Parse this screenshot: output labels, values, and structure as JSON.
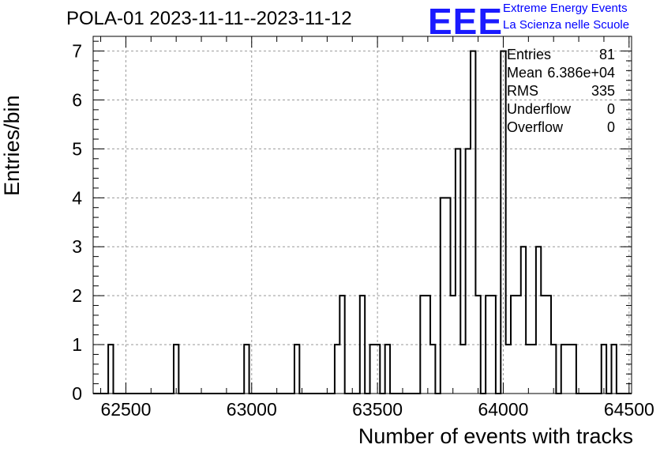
{
  "title": "POLA-01 2023-11-11--2023-11-12",
  "logo": {
    "mark": "EEE",
    "line1": "Extreme Energy Events",
    "line2": "La Scienza nelle Scuole",
    "color": "#0000ff"
  },
  "stats": {
    "entries_label": "Entries",
    "entries_value": "81",
    "mean_label": "Mean",
    "mean_value": "6.386e+04",
    "rms_label": "RMS",
    "rms_value": "335",
    "underflow_label": "Underflow",
    "underflow_value": "0",
    "overflow_label": "Overflow",
    "overflow_value": "0"
  },
  "chart_data": {
    "type": "bar",
    "title": "POLA-01 2023-11-11--2023-11-12",
    "xlabel": "Number of events with tracks",
    "ylabel": "Entries/bin",
    "xlim": [
      62370,
      64510
    ],
    "ylim": [
      0,
      7.3
    ],
    "grid": true,
    "x_ticks": [
      "62500",
      "63000",
      "63500",
      "64000",
      "64500"
    ],
    "y_ticks": [
      "0",
      "1",
      "2",
      "3",
      "4",
      "5",
      "6",
      "7"
    ],
    "bin_width": 20,
    "bins": [
      {
        "x": 62430,
        "y": 1
      },
      {
        "x": 62690,
        "y": 1
      },
      {
        "x": 62970,
        "y": 1
      },
      {
        "x": 63170,
        "y": 1
      },
      {
        "x": 63330,
        "y": 1
      },
      {
        "x": 63350,
        "y": 2
      },
      {
        "x": 63430,
        "y": 2
      },
      {
        "x": 63470,
        "y": 1
      },
      {
        "x": 63490,
        "y": 1
      },
      {
        "x": 63530,
        "y": 1
      },
      {
        "x": 63670,
        "y": 2
      },
      {
        "x": 63690,
        "y": 2
      },
      {
        "x": 63710,
        "y": 1
      },
      {
        "x": 63750,
        "y": 4
      },
      {
        "x": 63770,
        "y": 4
      },
      {
        "x": 63790,
        "y": 2
      },
      {
        "x": 63810,
        "y": 5
      },
      {
        "x": 63830,
        "y": 1
      },
      {
        "x": 63850,
        "y": 5
      },
      {
        "x": 63870,
        "y": 7
      },
      {
        "x": 63890,
        "y": 2
      },
      {
        "x": 63930,
        "y": 2
      },
      {
        "x": 63950,
        "y": 2
      },
      {
        "x": 63990,
        "y": 7
      },
      {
        "x": 64010,
        "y": 1
      },
      {
        "x": 64030,
        "y": 2
      },
      {
        "x": 64050,
        "y": 2
      },
      {
        "x": 64070,
        "y": 3
      },
      {
        "x": 64090,
        "y": 1
      },
      {
        "x": 64110,
        "y": 1
      },
      {
        "x": 64130,
        "y": 3
      },
      {
        "x": 64150,
        "y": 2
      },
      {
        "x": 64170,
        "y": 2
      },
      {
        "x": 64190,
        "y": 1
      },
      {
        "x": 64230,
        "y": 1
      },
      {
        "x": 64250,
        "y": 1
      },
      {
        "x": 64270,
        "y": 1
      },
      {
        "x": 64390,
        "y": 1
      },
      {
        "x": 64430,
        "y": 1
      }
    ]
  }
}
